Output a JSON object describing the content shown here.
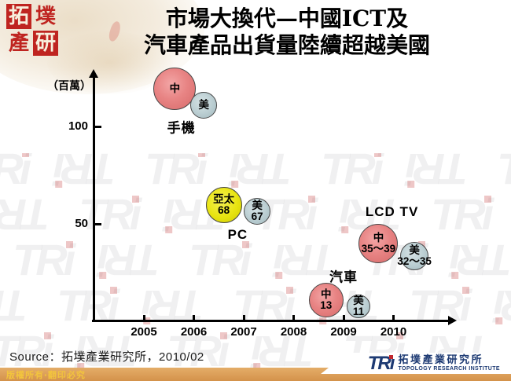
{
  "header": {
    "logo_seal_chars": [
      "拓",
      "墣",
      "產",
      "研"
    ],
    "title_line1": "市場大換代—中國ICT及",
    "title_line2": "汽車產品出貨量陸續超越美國"
  },
  "watermark": {
    "text": "TRi"
  },
  "chart_data": {
    "type": "scatter",
    "title": "市場大換代—中國ICT及汽車產品出貨量陸續超越美國",
    "xlabel": "",
    "ylabel": "（百萬）",
    "unit": "百萬 (millions of units)",
    "x_ticks": [
      2005,
      2006,
      2007,
      2008,
      2009,
      2010
    ],
    "y_ticks": [
      50,
      100
    ],
    "xlim": [
      2004.9,
      2011.2
    ],
    "ylim": [
      0,
      126
    ],
    "grid": false,
    "groups": [
      {
        "label": "手機",
        "label_at": {
          "x": 2005.75,
          "y": 100
        },
        "points": [
          {
            "region": "中",
            "x": 2005.62,
            "y": 119.5,
            "r": 27,
            "color": "red",
            "line1": "中",
            "line2": ""
          },
          {
            "region": "美",
            "x": 2006.2,
            "y": 111.0,
            "r": 17,
            "color": "gray",
            "line1": "美",
            "line2": ""
          }
        ]
      },
      {
        "label": "PC",
        "label_at": {
          "x": 2006.88,
          "y": 44.5
        },
        "points": [
          {
            "region": "亞太",
            "x": 2006.6,
            "y": 59.5,
            "r": 23,
            "color": "yellow",
            "line1": "亞太",
            "line2": "68"
          },
          {
            "region": "美",
            "x": 2007.27,
            "y": 56.5,
            "r": 17,
            "color": "gray",
            "line1": "美",
            "line2": "67"
          }
        ]
      },
      {
        "label": "LCD TV",
        "label_at": {
          "x": 2009.97,
          "y": 56
        },
        "points": [
          {
            "region": "中",
            "x": 2009.7,
            "y": 40.0,
            "r": 25,
            "color": "red",
            "line1": "中",
            "line2": "35～39"
          },
          {
            "region": "美",
            "x": 2010.42,
            "y": 33.5,
            "r": 18,
            "color": "gray",
            "line1": "美",
            "line2": "32～35"
          }
        ]
      },
      {
        "label": "汽車",
        "label_at": {
          "x": 2009.0,
          "y": 23.5
        },
        "points": [
          {
            "region": "中",
            "x": 2008.65,
            "y": 11.0,
            "r": 22,
            "color": "red",
            "line1": "中",
            "line2": "13"
          },
          {
            "region": "美",
            "x": 2009.3,
            "y": 7.7,
            "r": 15,
            "color": "gray",
            "line1": "美",
            "line2": "11"
          }
        ]
      }
    ]
  },
  "footer": {
    "source": "Source：拓墣產業研究所，2010/02",
    "copyright": "版權所有‧翻印必究",
    "tri_mark": "TRı",
    "tri_cn": "拓墣產業研究所",
    "tri_en": "TOPOLOGY RESEARCH INSTITUTE"
  }
}
